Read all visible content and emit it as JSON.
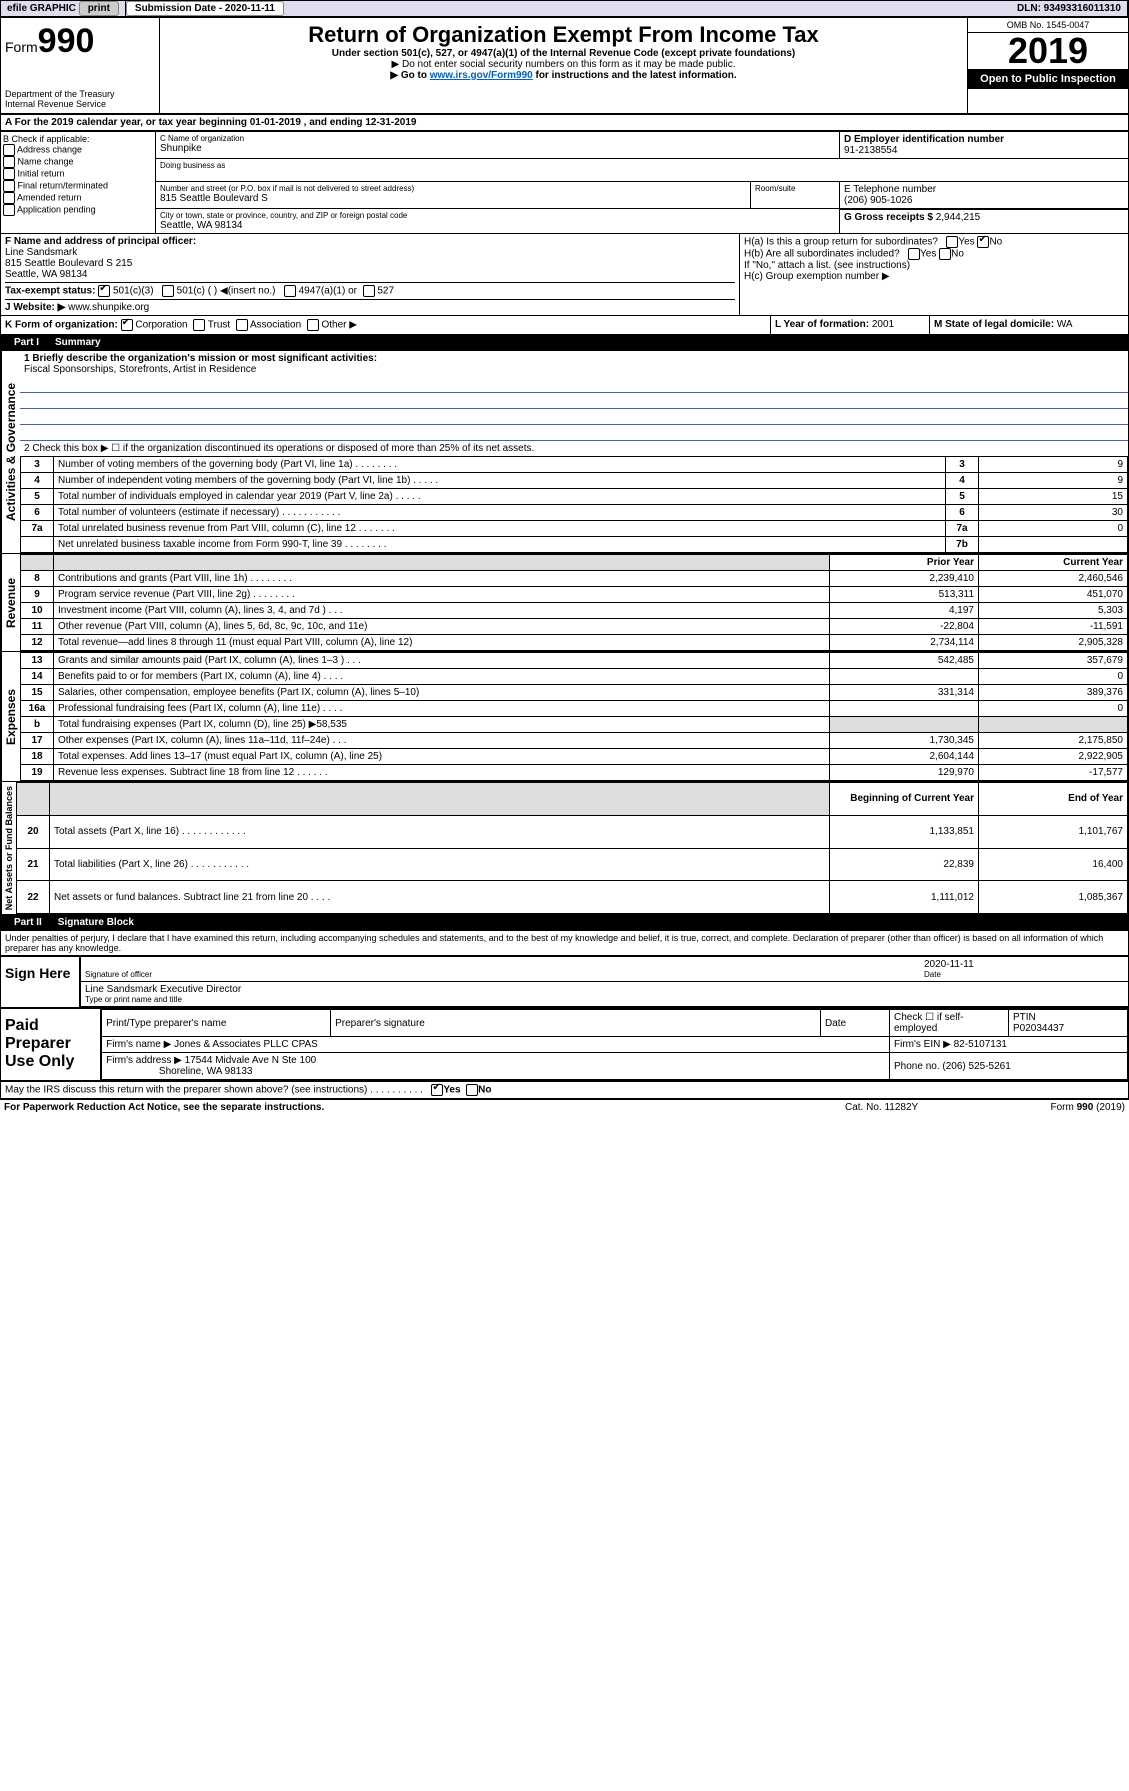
{
  "topbar": {
    "efile": "efile GRAPHIC",
    "print": "print",
    "subdate_label": "Submission Date - 2020-11-11",
    "dln": "DLN: 93493316011310"
  },
  "header": {
    "form_label": "Form",
    "form_num": "990",
    "dept": "Department of the Treasury\nInternal Revenue Service",
    "title": "Return of Organization Exempt From Income Tax",
    "subtitle": "Under section 501(c), 527, or 4947(a)(1) of the Internal Revenue Code (except private foundations)",
    "note1": "▶ Do not enter social security numbers on this form as it may be made public.",
    "note2_pre": "▶ Go to ",
    "note2_link": "www.irs.gov/Form990",
    "note2_post": " for instructions and the latest information.",
    "omb": "OMB No. 1545-0047",
    "year": "2019",
    "open": "Open to Public Inspection"
  },
  "A": "A For the 2019 calendar year, or tax year beginning 01-01-2019   , and ending 12-31-2019",
  "B": {
    "label": "B Check if applicable:",
    "opts": [
      "Address change",
      "Name change",
      "Initial return",
      "Final return/terminated",
      "Amended return",
      "Application pending"
    ]
  },
  "C": {
    "name_label": "C Name of organization",
    "name": "Shunpike",
    "dba_label": "Doing business as",
    "dba": "",
    "addr_label": "Number and street (or P.O. box if mail is not delivered to street address)",
    "addr": "815 Seattle Boulevard S",
    "suite_label": "Room/suite",
    "city_label": "City or town, state or province, country, and ZIP or foreign postal code",
    "city": "Seattle, WA  98134"
  },
  "D": {
    "label": "D Employer identification number",
    "value": "91-2138554"
  },
  "E": {
    "label": "E Telephone number",
    "value": "(206) 905-1026"
  },
  "G": {
    "label": "G Gross receipts $",
    "value": "2,944,215"
  },
  "F": {
    "label": "F  Name and address of principal officer:",
    "name": "Line Sandsmark",
    "addr": "815 Seattle Boulevard S 215",
    "city": "Seattle, WA  98134"
  },
  "H": {
    "a": "H(a)  Is this a group return for subordinates?",
    "b": "H(b)  Are all subordinates included?",
    "note": "If \"No,\" attach a list. (see instructions)",
    "c": "H(c)  Group exemption number ▶"
  },
  "I": {
    "label": "Tax-exempt status:",
    "opts": [
      "501(c)(3)",
      "501(c) (  ) ◀(insert no.)",
      "4947(a)(1) or",
      "527"
    ]
  },
  "J": {
    "label": "J  Website: ▶",
    "value": "www.shunpike.org"
  },
  "K": {
    "label": "K Form of organization:",
    "opts": [
      "Corporation",
      "Trust",
      "Association",
      "Other ▶"
    ]
  },
  "L": {
    "label": "L Year of formation:",
    "value": "2001"
  },
  "M": {
    "label": "M State of legal domicile:",
    "value": "WA"
  },
  "part1": {
    "head": "Part I",
    "title": "Summary",
    "mission_label": "1  Briefly describe the organization's mission or most significant activities:",
    "mission": "Fiscal Sponsorships, Storefronts, Artist in Residence",
    "line2": "2   Check this box ▶ ☐  if the organization discontinued its operations or disposed of more than 25% of its net assets.",
    "rows_top": [
      {
        "n": "3",
        "d": "Number of voting members of the governing body (Part VI, line 1a)  .  .  .  .  .  .  .  .",
        "box": "3",
        "v": "9"
      },
      {
        "n": "4",
        "d": "Number of independent voting members of the governing body (Part VI, line 1b)  .  .  .  .  .",
        "box": "4",
        "v": "9"
      },
      {
        "n": "5",
        "d": "Total number of individuals employed in calendar year 2019 (Part V, line 2a)  .  .  .  .  .",
        "box": "5",
        "v": "15"
      },
      {
        "n": "6",
        "d": "Total number of volunteers (estimate if necessary)  .  .  .  .  .  .  .  .  .  .  .",
        "box": "6",
        "v": "30"
      },
      {
        "n": "7a",
        "d": "Total unrelated business revenue from Part VIII, column (C), line 12  .  .  .  .  .  .  .",
        "box": "7a",
        "v": "0"
      },
      {
        "n": "",
        "d": "Net unrelated business taxable income from Form 990-T, line 39  .  .  .  .  .  .  .  .",
        "box": "7b",
        "v": ""
      }
    ],
    "col_prior": "Prior Year",
    "col_curr": "Current Year",
    "revenue": [
      {
        "n": "8",
        "d": "Contributions and grants (Part VIII, line 1h)  .  .  .  .  .  .  .  .",
        "p": "2,239,410",
        "c": "2,460,546"
      },
      {
        "n": "9",
        "d": "Program service revenue (Part VIII, line 2g)  .  .  .  .  .  .  .  .",
        "p": "513,311",
        "c": "451,070"
      },
      {
        "n": "10",
        "d": "Investment income (Part VIII, column (A), lines 3, 4, and 7d )  .  .  .",
        "p": "4,197",
        "c": "5,303"
      },
      {
        "n": "11",
        "d": "Other revenue (Part VIII, column (A), lines 5, 6d, 8c, 9c, 10c, and 11e)",
        "p": "-22,804",
        "c": "-11,591"
      },
      {
        "n": "12",
        "d": "Total revenue—add lines 8 through 11 (must equal Part VIII, column (A), line 12)",
        "p": "2,734,114",
        "c": "2,905,328"
      }
    ],
    "expenses": [
      {
        "n": "13",
        "d": "Grants and similar amounts paid (Part IX, column (A), lines 1–3 )  .  .  .",
        "p": "542,485",
        "c": "357,679"
      },
      {
        "n": "14",
        "d": "Benefits paid to or for members (Part IX, column (A), line 4)  .  .  .  .",
        "p": "",
        "c": "0"
      },
      {
        "n": "15",
        "d": "Salaries, other compensation, employee benefits (Part IX, column (A), lines 5–10)",
        "p": "331,314",
        "c": "389,376"
      },
      {
        "n": "16a",
        "d": "Professional fundraising fees (Part IX, column (A), line 11e)  .  .  .  .",
        "p": "",
        "c": "0"
      },
      {
        "n": "b",
        "d": "Total fundraising expenses (Part IX, column (D), line 25) ▶58,535",
        "p": "",
        "c": "",
        "shade": true
      },
      {
        "n": "17",
        "d": "Other expenses (Part IX, column (A), lines 11a–11d, 11f–24e)  .  .  .",
        "p": "1,730,345",
        "c": "2,175,850"
      },
      {
        "n": "18",
        "d": "Total expenses. Add lines 13–17 (must equal Part IX, column (A), line 25)",
        "p": "2,604,144",
        "c": "2,922,905"
      },
      {
        "n": "19",
        "d": "Revenue less expenses. Subtract line 18 from line 12  .  .  .  .  .  .",
        "p": "129,970",
        "c": "-17,577"
      }
    ],
    "col_beg": "Beginning of Current Year",
    "col_end": "End of Year",
    "netassets": [
      {
        "n": "20",
        "d": "Total assets (Part X, line 16)  .  .  .  .  .  .  .  .  .  .  .  .",
        "p": "1,133,851",
        "c": "1,101,767"
      },
      {
        "n": "21",
        "d": "Total liabilities (Part X, line 26)  .  .  .  .  .  .  .  .  .  .  .",
        "p": "22,839",
        "c": "16,400"
      },
      {
        "n": "22",
        "d": "Net assets or fund balances. Subtract line 21 from line 20  .  .  .  .",
        "p": "1,111,012",
        "c": "1,085,367"
      }
    ],
    "vlab_act": "Activities & Governance",
    "vlab_rev": "Revenue",
    "vlab_exp": "Expenses",
    "vlab_net": "Net Assets or Fund Balances"
  },
  "part2": {
    "head": "Part II",
    "title": "Signature Block",
    "perjury": "Under penalties of perjury, I declare that I have examined this return, including accompanying schedules and statements, and to the best of my knowledge and belief, it is true, correct, and complete. Declaration of preparer (other than officer) is based on all information of which preparer has any knowledge.",
    "sign_label": "Sign Here",
    "sig_officer": "Signature of officer",
    "sig_date": "2020-11-11",
    "date_label": "Date",
    "typed_name": "Line Sandsmark  Executive Director",
    "typed_label": "Type or print name and title",
    "prep_label": "Paid Preparer Use Only",
    "prep_name_label": "Print/Type preparer's name",
    "prep_sig_label": "Preparer's signature",
    "prep_date_label": "Date",
    "prep_check": "Check ☐ if self-employed",
    "ptin_label": "PTIN",
    "ptin": "P02034437",
    "firm_name_label": "Firm's name    ▶",
    "firm_name": "Jones & Associates PLLC CPAS",
    "firm_ein_label": "Firm's EIN ▶",
    "firm_ein": "82-5107131",
    "firm_addr_label": "Firm's address ▶",
    "firm_addr": "17544 Midvale Ave N Ste 100",
    "firm_city": "Shoreline, WA  98133",
    "phone_label": "Phone no.",
    "phone": "(206) 525-5261",
    "discuss": "May the IRS discuss this return with the preparer shown above? (see instructions)  .  .  .  .  .  .  .  .  .  .",
    "yes": "Yes",
    "no": "No"
  },
  "footer": {
    "pra": "For Paperwork Reduction Act Notice, see the separate instructions.",
    "cat": "Cat. No. 11282Y",
    "form": "Form 990 (2019)"
  },
  "yesno": {
    "yes": "Yes",
    "no": "No"
  }
}
